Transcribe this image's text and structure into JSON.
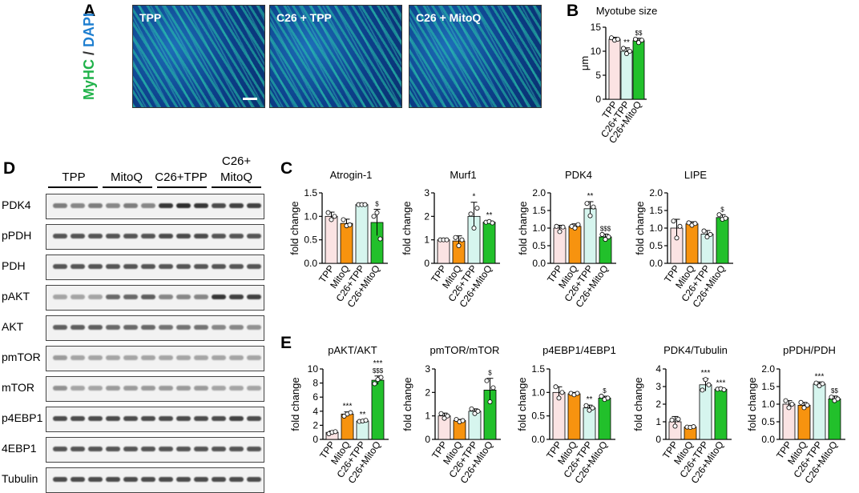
{
  "panels": {
    "A": "A",
    "B": "B",
    "C": "C",
    "D": "D",
    "E": "E"
  },
  "microscopy": {
    "stain_green": "MyHC",
    "stain_sep": " / ",
    "stain_blue": "DAPI",
    "images": [
      {
        "label": "TPP"
      },
      {
        "label": "C26 + TPP"
      },
      {
        "label": "C26 + MitoQ"
      }
    ]
  },
  "blot": {
    "groups": [
      "TPP",
      "MitoQ",
      "C26+TPP",
      "C26+\nMitoQ"
    ],
    "rows": [
      {
        "name": "PDK4",
        "intensity": [
          0.55,
          0.5,
          0.55,
          0.5,
          0.55,
          0.5,
          0.9,
          0.95,
          0.9,
          0.8,
          0.85,
          0.85
        ]
      },
      {
        "name": "pPDH",
        "intensity": [
          0.75,
          0.75,
          0.75,
          0.75,
          0.75,
          0.75,
          0.8,
          0.8,
          0.8,
          0.75,
          0.75,
          0.75
        ]
      },
      {
        "name": "PDH",
        "intensity": [
          0.75,
          0.75,
          0.75,
          0.75,
          0.75,
          0.75,
          0.75,
          0.75,
          0.75,
          0.75,
          0.75,
          0.75
        ]
      },
      {
        "name": "pAKT",
        "intensity": [
          0.35,
          0.35,
          0.35,
          0.65,
          0.65,
          0.7,
          0.5,
          0.5,
          0.5,
          0.9,
          0.85,
          0.85
        ]
      },
      {
        "name": "AKT",
        "intensity": [
          0.7,
          0.7,
          0.7,
          0.65,
          0.65,
          0.65,
          0.6,
          0.6,
          0.6,
          0.5,
          0.5,
          0.45
        ]
      },
      {
        "name": "pmTOR",
        "intensity": [
          0.4,
          0.35,
          0.35,
          0.35,
          0.35,
          0.35,
          0.35,
          0.35,
          0.35,
          0.35,
          0.35,
          0.35
        ]
      },
      {
        "name": "mTOR",
        "intensity": [
          0.45,
          0.35,
          0.35,
          0.4,
          0.4,
          0.4,
          0.4,
          0.4,
          0.4,
          0.35,
          0.35,
          0.35
        ]
      },
      {
        "name": "p4EBP1",
        "intensity": [
          0.8,
          0.8,
          0.8,
          0.8,
          0.8,
          0.8,
          0.8,
          0.8,
          0.8,
          0.8,
          0.85,
          0.8
        ]
      },
      {
        "name": "4EBP1",
        "intensity": [
          0.75,
          0.75,
          0.75,
          0.75,
          0.75,
          0.75,
          0.75,
          0.75,
          0.75,
          0.75,
          0.75,
          0.75
        ]
      },
      {
        "name": "Tubulin",
        "intensity": [
          0.8,
          0.8,
          0.8,
          0.8,
          0.8,
          0.8,
          0.8,
          0.8,
          0.8,
          0.8,
          0.8,
          0.8
        ]
      }
    ]
  },
  "colors": {
    "TPP": "#fbe3e3",
    "MitoQ": "#f7930f",
    "C26+TPP": "#d6f5ee",
    "C26+MitoQ": "#22c02b"
  },
  "chart_data": [
    {
      "id": "myotube",
      "type": "bar",
      "title": "Myotube size",
      "ylabel": "μm",
      "xlabel": "",
      "categories": [
        "TPP",
        "C26+TPP",
        "C26+MitoQ"
      ],
      "values": [
        12.5,
        10.0,
        12.2
      ],
      "errors": [
        0.4,
        0.7,
        0.5
      ],
      "points": [
        [
          12.8,
          12.3,
          12.5
        ],
        [
          10.6,
          9.5,
          10.0
        ],
        [
          12.5,
          11.8,
          12.3
        ]
      ],
      "annotations": [
        "",
        "**",
        "$$"
      ],
      "ylim": [
        0,
        15
      ],
      "yticks": [
        0,
        5,
        10,
        15
      ]
    },
    {
      "id": "atrogin",
      "type": "bar",
      "title": "Atrogin-1",
      "ylabel": "fold change",
      "xlabel": "",
      "categories": [
        "TPP",
        "MitoQ",
        "C26+TPP",
        "C26+MitoQ"
      ],
      "values": [
        1.0,
        0.85,
        1.25,
        0.87
      ],
      "errors": [
        0.09,
        0.09,
        0.02,
        0.28
      ],
      "points": [
        [
          1.08,
          0.93,
          1.0
        ],
        [
          0.93,
          0.8,
          0.82
        ],
        [
          1.25,
          1.25,
          1.25
        ],
        [
          1.0,
          1.08,
          0.52
        ]
      ],
      "annotations": [
        "",
        "",
        "",
        "$"
      ],
      "ylim": [
        0,
        1.5
      ],
      "yticks": [
        0.0,
        0.5,
        1.0,
        1.5
      ]
    },
    {
      "id": "murf1",
      "type": "bar",
      "title": "Murf1",
      "ylabel": "fold change",
      "xlabel": "",
      "categories": [
        "TPP",
        "MitoQ",
        "C26+TPP",
        "C26+MitoQ"
      ],
      "values": [
        1.0,
        0.95,
        2.0,
        1.75
      ],
      "errors": [
        0.02,
        0.22,
        0.6,
        0.05
      ],
      "points": [
        [
          1.0,
          1.0,
          1.0
        ],
        [
          1.1,
          0.75,
          1.0
        ],
        [
          2.1,
          1.5,
          2.35
        ],
        [
          1.75,
          1.78,
          1.72
        ]
      ],
      "annotations": [
        "",
        "",
        "*",
        "**"
      ],
      "ylim": [
        0,
        3
      ],
      "yticks": [
        0,
        1,
        2,
        3
      ]
    },
    {
      "id": "pdk4",
      "type": "bar",
      "title": "PDK4",
      "ylabel": "fold change",
      "xlabel": "",
      "categories": [
        "TPP",
        "MitoQ",
        "C26+TPP",
        "C26+MitoQ"
      ],
      "values": [
        1.0,
        1.05,
        1.55,
        0.75
      ],
      "errors": [
        0.08,
        0.07,
        0.2,
        0.08
      ],
      "points": [
        [
          1.05,
          0.9,
          1.03
        ],
        [
          1.05,
          1.0,
          1.1
        ],
        [
          1.7,
          1.35,
          1.6
        ],
        [
          0.82,
          0.68,
          0.75
        ]
      ],
      "annotations": [
        "",
        "",
        "**",
        "$$$"
      ],
      "ylim": [
        0,
        2.0
      ],
      "yticks": [
        0.0,
        0.5,
        1.0,
        1.5,
        2.0
      ]
    },
    {
      "id": "lipe",
      "type": "bar",
      "title": "LIPE",
      "ylabel": "fold change",
      "xlabel": "",
      "categories": [
        "TPP",
        "MitoQ",
        "C26+TPP",
        "C26+MitoQ"
      ],
      "values": [
        1.0,
        1.12,
        0.83,
        1.3
      ],
      "errors": [
        0.25,
        0.06,
        0.1,
        0.08
      ],
      "points": [
        [
          1.2,
          0.72,
          1.05
        ],
        [
          1.15,
          1.08,
          1.13
        ],
        [
          0.92,
          0.75,
          0.82
        ],
        [
          1.38,
          1.25,
          1.28
        ]
      ],
      "annotations": [
        "",
        "",
        "",
        "$"
      ],
      "ylim": [
        0,
        2.0
      ],
      "yticks": [
        0.0,
        0.5,
        1.0,
        1.5,
        2.0
      ]
    },
    {
      "id": "pakt",
      "type": "bar",
      "title": "pAKT/AKT",
      "ylabel": "fold change",
      "xlabel": "",
      "categories": [
        "TPP",
        "MitoQ",
        "C26+TPP",
        "C26+MitoQ"
      ],
      "values": [
        1.0,
        3.6,
        2.6,
        8.4
      ],
      "errors": [
        0.2,
        0.3,
        0.1,
        0.6
      ],
      "points": [
        [
          0.8,
          1.0,
          1.1
        ],
        [
          3.3,
          3.6,
          3.8
        ],
        [
          2.55,
          2.6,
          2.7
        ],
        [
          7.9,
          8.5,
          8.8
        ]
      ],
      "annotations": [
        "",
        "***",
        "**",
        "***\n$$$"
      ],
      "ylim": [
        0,
        10
      ],
      "yticks": [
        0,
        2,
        4,
        6,
        8,
        10
      ]
    },
    {
      "id": "pmtor",
      "type": "bar",
      "title": "pmTOR/mTOR",
      "ylabel": "fold change",
      "xlabel": "",
      "categories": [
        "TPP",
        "MitoQ",
        "C26+TPP",
        "C26+MitoQ"
      ],
      "values": [
        1.0,
        0.8,
        1.2,
        2.1
      ],
      "errors": [
        0.12,
        0.05,
        0.1,
        0.5
      ],
      "points": [
        [
          1.1,
          0.9,
          1.0
        ],
        [
          0.85,
          0.75,
          0.8
        ],
        [
          1.3,
          1.1,
          1.2
        ],
        [
          2.5,
          1.6,
          2.2
        ]
      ],
      "annotations": [
        "",
        "",
        "",
        "$"
      ],
      "ylim": [
        0,
        3
      ],
      "yticks": [
        0,
        1,
        2,
        3
      ]
    },
    {
      "id": "p4ebp1",
      "type": "bar",
      "title": "p4EBP1/4EBP1",
      "ylabel": "fold change",
      "xlabel": "",
      "categories": [
        "TPP",
        "MitoQ",
        "C26+TPP",
        "C26+MitoQ"
      ],
      "values": [
        1.0,
        0.97,
        0.67,
        0.88
      ],
      "errors": [
        0.12,
        0.03,
        0.06,
        0.04
      ],
      "points": [
        [
          1.12,
          0.88,
          1.0
        ],
        [
          0.98,
          0.95,
          0.98
        ],
        [
          0.72,
          0.62,
          0.67
        ],
        [
          0.92,
          0.85,
          0.88
        ]
      ],
      "annotations": [
        "",
        "",
        "**",
        "$"
      ],
      "ylim": [
        0,
        1.5
      ],
      "yticks": [
        0.0,
        0.5,
        1.0,
        1.5
      ]
    },
    {
      "id": "pdk4tub",
      "type": "bar",
      "title": "PDK4/Tubulin",
      "ylabel": "fold change",
      "xlabel": "",
      "categories": [
        "TPP",
        "MitoQ",
        "C26+TPP",
        "C26+MitoQ"
      ],
      "values": [
        1.0,
        0.7,
        3.1,
        2.85
      ],
      "errors": [
        0.3,
        0.03,
        0.35,
        0.03
      ],
      "points": [
        [
          1.1,
          0.75,
          1.15
        ],
        [
          0.7,
          0.68,
          0.72
        ],
        [
          2.8,
          3.4,
          3.1
        ],
        [
          2.85,
          2.88,
          2.82
        ]
      ],
      "annotations": [
        "",
        "",
        "***",
        "***"
      ],
      "ylim": [
        0,
        4
      ],
      "yticks": [
        0,
        1,
        2,
        3,
        4
      ]
    },
    {
      "id": "ppdh",
      "type": "bar",
      "title": "pPDH/PDH",
      "ylabel": "fold change",
      "xlabel": "",
      "categories": [
        "TPP",
        "MitoQ",
        "C26+TPP",
        "C26+MitoQ"
      ],
      "values": [
        1.0,
        0.97,
        1.57,
        1.15
      ],
      "errors": [
        0.1,
        0.08,
        0.06,
        0.08
      ],
      "points": [
        [
          1.1,
          0.9,
          1.0
        ],
        [
          1.05,
          0.9,
          0.97
        ],
        [
          1.6,
          1.52,
          1.58
        ],
        [
          1.2,
          1.1,
          1.15
        ]
      ],
      "annotations": [
        "",
        "",
        "***",
        "$$"
      ],
      "ylim": [
        0,
        2.0
      ],
      "yticks": [
        0.0,
        0.5,
        1.0,
        1.5,
        2.0
      ]
    }
  ]
}
